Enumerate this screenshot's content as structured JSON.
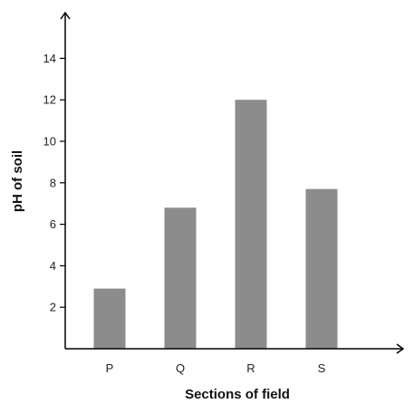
{
  "chart_data": {
    "type": "bar",
    "title": "",
    "xlabel": "Sections of field",
    "ylabel": "pH of soil",
    "categories": [
      "P",
      "Q",
      "R",
      "S"
    ],
    "values": [
      2.9,
      6.8,
      12.0,
      7.7
    ],
    "ylim": [
      0,
      15
    ],
    "yticks": [
      2,
      4,
      6,
      8,
      10,
      12,
      14
    ],
    "grid": false,
    "legend": "none",
    "bar_color": "#8c8c8c",
    "axis_color": "#000000"
  }
}
